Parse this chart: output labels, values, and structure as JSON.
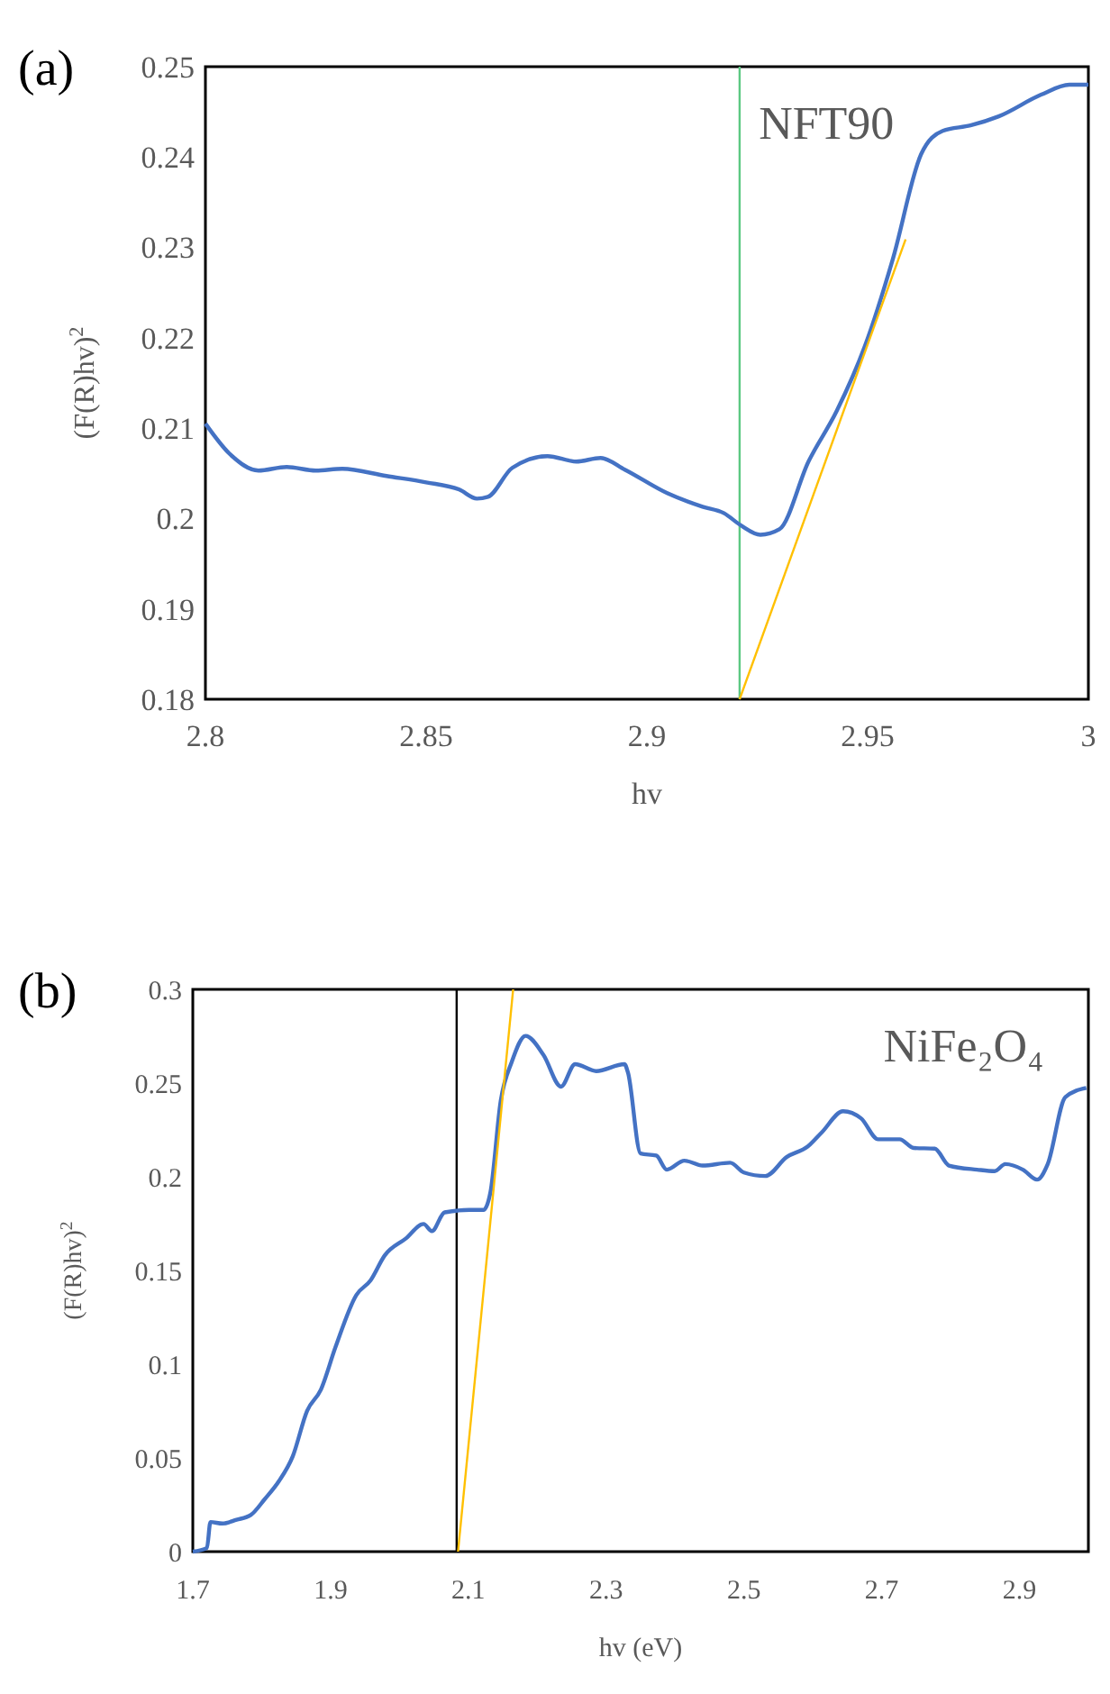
{
  "chart_data": [
    {
      "type": "line",
      "title": "(a)",
      "xlabel": "hv",
      "ylabel": "(F(R)hv)$^{2}$",
      "annotations": [
        "NFT90"
      ],
      "xlim": [
        2.8,
        3.0
      ],
      "xticks": [
        2.8,
        2.85,
        2.9,
        2.95,
        3
      ],
      "ylim": [
        0.18,
        0.25
      ],
      "yticks": [
        0.18,
        0.19,
        0.2,
        0.21,
        0.22,
        0.23,
        0.24,
        0.25
      ],
      "grid": false,
      "marker": "none",
      "series": [
        {
          "color": "#4472c4",
          "x": [
            2.8,
            2.8056,
            2.812,
            2.8184,
            2.825,
            2.831,
            2.841,
            2.85,
            2.8575,
            2.8615,
            2.864,
            2.8695,
            2.8775,
            2.884,
            2.8895,
            2.895,
            2.9046,
            2.9126,
            2.9174,
            2.9214,
            2.9257,
            2.93,
            2.9366,
            2.943,
            2.9494,
            2.9557,
            2.9621,
            2.967,
            2.9733,
            2.9797,
            2.9893,
            2.9957,
            3.0
          ],
          "values": [
            0.2105,
            0.2071,
            0.2053,
            0.2057,
            0.2053,
            0.2055,
            0.2047,
            0.204,
            0.2032,
            0.2022,
            0.2024,
            0.2056,
            0.2069,
            0.2063,
            0.2067,
            0.2054,
            0.2028,
            0.2013,
            0.2006,
            0.1992,
            0.1982,
            0.1988,
            0.2063,
            0.2119,
            0.2191,
            0.2287,
            0.2403,
            0.2429,
            0.2435,
            0.2445,
            0.2469,
            0.248,
            0.248
          ]
        },
        {
          "type": "line",
          "color": "#ffc000",
          "x": [
            2.921,
            2.9586
          ],
          "values": [
            0.18,
            0.2309
          ]
        }
      ],
      "ref_lines": [
        {
          "axis": "x",
          "value": 2.921,
          "color": "#5cc882"
        }
      ]
    },
    {
      "type": "line",
      "title": "(b)",
      "xlabel": "hv (eV)",
      "ylabel": "(F(R)hv)$^{2}$",
      "annotations": [
        "NiFe₂O₄"
      ],
      "xlim": [
        1.7,
        3.0
      ],
      "xticks": [
        1.7,
        1.9,
        2.1,
        2.3,
        2.5,
        2.7,
        2.9
      ],
      "ylim": [
        0,
        0.3
      ],
      "yticks": [
        0,
        0.05,
        0.1,
        0.15,
        0.2,
        0.25,
        0.3
      ],
      "grid": false,
      "marker": "none",
      "series": [
        {
          "color": "#4472c4",
          "x": [
            1.7,
            1.7205,
            1.7256,
            1.743,
            1.7635,
            1.784,
            1.8044,
            1.825,
            1.845,
            1.866,
            1.886,
            1.907,
            1.9375,
            1.958,
            1.9785,
            2.009,
            2.035,
            2.047,
            2.0655,
            2.1014,
            2.122,
            2.132,
            2.147,
            2.163,
            2.183,
            2.209,
            2.2345,
            2.255,
            2.2856,
            2.3266,
            2.3317,
            2.35,
            2.3727,
            2.388,
            2.4136,
            2.44,
            2.48,
            2.5,
            2.531,
            2.562,
            2.5928,
            2.613,
            2.644,
            2.67,
            2.695,
            2.7259,
            2.7463,
            2.777,
            2.7976,
            2.8385,
            2.864,
            2.8795,
            2.905,
            2.9255,
            2.941,
            2.9665,
            2.997
          ],
          "values": [
            0,
            0.002,
            0.0158,
            0.015,
            0.017,
            0.0195,
            0.028,
            0.0376,
            0.0508,
            0.0752,
            0.0865,
            0.109,
            0.137,
            0.1447,
            0.158,
            0.167,
            0.1748,
            0.171,
            0.181,
            0.1823,
            0.1823,
            0.1917,
            0.2406,
            0.2613,
            0.2752,
            0.265,
            0.2481,
            0.2601,
            0.2564,
            0.2601,
            0.2556,
            0.2124,
            0.2113,
            0.2038,
            0.2086,
            0.206,
            0.2075,
            0.2023,
            0.2004,
            0.2105,
            0.2162,
            0.2237,
            0.235,
            0.2312,
            0.22,
            0.22,
            0.2154,
            0.215,
            0.206,
            0.2038,
            0.203,
            0.2068,
            0.2038,
            0.1985,
            0.2068,
            0.2425,
            0.2474
          ]
        },
        {
          "type": "line",
          "color": "#ffc000",
          "x": [
            2.085,
            2.165
          ],
          "values": [
            0,
            0.3
          ]
        }
      ],
      "ref_lines": [
        {
          "axis": "x",
          "value": 2.083,
          "color": "#000000"
        }
      ]
    }
  ]
}
